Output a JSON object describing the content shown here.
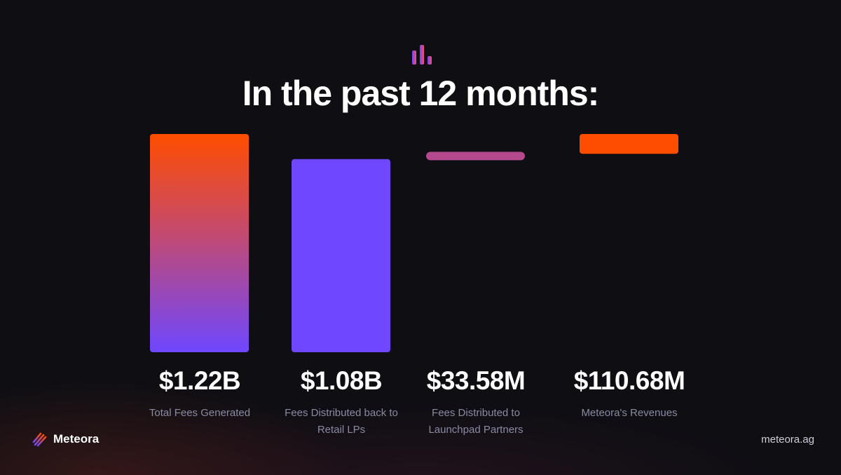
{
  "title": "In the past 12 months:",
  "header_icon": "bar-chart-icon",
  "chart_data": {
    "type": "bar",
    "title": "In the past 12 months:",
    "style": "waterfall",
    "categories": [
      "Total Fees Generated",
      "Fees Distributed back to Retail LPs",
      "Fees Distributed to Launchpad Partners",
      "Meteora's Revenues"
    ],
    "values": [
      1220,
      1080,
      33.58,
      110.68
    ],
    "unit": "USD millions",
    "display_values": [
      "$1.22B",
      "$1.08B",
      "$33.58M",
      "$110.68M"
    ],
    "label_lines": [
      [
        "Total Fees Generated"
      ],
      [
        "Fees Distributed back to",
        "Retail LPs"
      ],
      [
        "Fees Distributed to",
        "Launchpad Partners"
      ],
      [
        "Meteora's Revenues"
      ]
    ],
    "ylim": [
      0,
      1220
    ],
    "grid": false,
    "legend": "none"
  },
  "colors": {
    "background": "#0e0e13",
    "orange": "#ff4d00",
    "purple": "#6e47ff",
    "pink": "#b4498d",
    "label": "#8a8aa3"
  },
  "footer": {
    "brand": "Meteora",
    "brand_icon": "meteora-logo-icon",
    "website": "meteora.ag"
  }
}
